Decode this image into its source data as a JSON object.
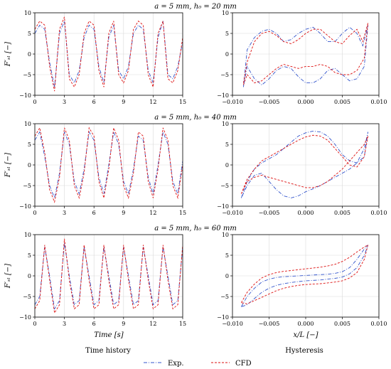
{
  "colors": {
    "exp": "#3355cc",
    "cfd": "#dd1111"
  },
  "chart_data": [
    {
      "type": "line",
      "panel": "time-history",
      "row": 0,
      "title": "a = 5 mm,  h₀ = 20 mm",
      "xlabel": "",
      "ylabel": "F′ₛₗ [−]",
      "xlim": [
        0,
        15
      ],
      "ylim": [
        -10,
        10
      ],
      "xticks": [
        "0",
        "3",
        "6",
        "9",
        "12",
        "15"
      ],
      "yticks": [
        "10",
        "5",
        "0",
        "−5",
        "−10"
      ],
      "grid": true,
      "series": [
        {
          "name": "Exp.",
          "style": "dash-dot",
          "x": [
            0.0,
            0.5,
            1.0,
            1.5,
            2.0,
            2.5,
            3.0,
            3.5,
            4.0,
            4.5,
            5.0,
            5.5,
            6.0,
            6.5,
            7.0,
            7.5,
            8.0,
            8.5,
            9.0,
            9.5,
            10.0,
            10.5,
            11.0,
            11.5,
            12.0,
            12.5,
            13.0,
            13.5,
            14.0,
            14.5,
            15.0
          ],
          "values": [
            5,
            7,
            6,
            -2,
            -8,
            5,
            8,
            -5,
            -7,
            -4,
            4,
            7,
            6,
            -3,
            -7,
            4,
            7,
            -4,
            -6,
            -3,
            5,
            7,
            6,
            -4,
            -7,
            4,
            8,
            -5,
            -6,
            -3,
            3
          ]
        },
        {
          "name": "CFD",
          "style": "dashed",
          "x": [
            0.0,
            0.5,
            1.0,
            1.5,
            2.0,
            2.5,
            3.0,
            3.5,
            4.0,
            4.5,
            5.0,
            5.5,
            6.0,
            6.5,
            7.0,
            7.5,
            8.0,
            8.5,
            9.0,
            9.5,
            10.0,
            10.5,
            11.0,
            11.5,
            12.0,
            12.5,
            13.0,
            13.5,
            14.0,
            14.5,
            15.0
          ],
          "values": [
            6,
            8,
            7,
            -3,
            -9,
            6,
            9,
            -6,
            -8,
            -5,
            5,
            8,
            7,
            -4,
            -8,
            5,
            8,
            -5,
            -7,
            -4,
            6,
            8,
            7,
            -5,
            -8,
            5,
            8,
            -6,
            -7,
            -4,
            4
          ]
        }
      ]
    },
    {
      "type": "line",
      "panel": "hysteresis",
      "row": 0,
      "xlabel": "",
      "ylabel": "",
      "xlim": [
        -0.01,
        0.01
      ],
      "ylim": [
        -10,
        10
      ],
      "xticks": [
        "−0.010",
        "−0.005",
        "0.000",
        "0.005",
        "0.010"
      ],
      "yticks": [
        "10",
        "5",
        "0",
        "−5",
        "−10"
      ],
      "grid": true,
      "series": [
        {
          "name": "Exp.",
          "style": "dash-dot",
          "x": [
            -0.0085,
            -0.008,
            -0.007,
            -0.006,
            -0.005,
            -0.004,
            -0.003,
            -0.002,
            -0.001,
            0.0,
            0.001,
            0.002,
            0.003,
            0.004,
            0.005,
            0.006,
            0.007,
            0.0078,
            0.0085,
            0.008,
            0.007,
            0.006,
            0.005,
            0.004,
            0.003,
            0.002,
            0.001,
            0.0,
            -0.001,
            -0.002,
            -0.003,
            -0.004,
            -0.005,
            -0.006,
            -0.007,
            -0.008,
            -0.0085
          ],
          "values": [
            -8,
            1,
            4,
            5.5,
            6,
            5,
            3,
            3.5,
            5,
            6,
            6.5,
            5,
            3,
            3,
            5,
            6.5,
            5,
            2,
            7,
            -3,
            -6,
            -6.5,
            -5,
            -3.5,
            -4,
            -6,
            -7,
            -7,
            -5.5,
            -3.5,
            -3,
            -4,
            -6,
            -7.5,
            -6,
            -3,
            -8
          ]
        },
        {
          "name": "CFD",
          "style": "dashed",
          "x": [
            -0.0085,
            -0.008,
            -0.007,
            -0.006,
            -0.005,
            -0.004,
            -0.003,
            -0.002,
            -0.001,
            0.0,
            0.001,
            0.002,
            0.003,
            0.004,
            0.005,
            0.006,
            0.007,
            0.0078,
            0.0085,
            0.008,
            0.007,
            0.006,
            0.005,
            0.004,
            0.003,
            0.002,
            0.001,
            0.0,
            -0.001,
            -0.002,
            -0.003,
            -0.004,
            -0.005,
            -0.006,
            -0.007,
            -0.008,
            -0.0085
          ],
          "values": [
            -7,
            -2,
            3,
            5,
            5.5,
            4.5,
            3,
            2.5,
            3.5,
            5,
            6,
            6,
            4.5,
            3,
            2.5,
            4.5,
            6,
            3,
            7.5,
            -1,
            -4,
            -5,
            -5,
            -4.5,
            -3,
            -2.5,
            -3,
            -3,
            -3.5,
            -3,
            -2.5,
            -3.5,
            -5,
            -6.5,
            -7,
            -5,
            -7.5
          ]
        }
      ]
    },
    {
      "type": "line",
      "panel": "time-history",
      "row": 1,
      "title": "a =  5 mm,  h₀ = 40 mm",
      "xlabel": "",
      "ylabel": "F′ₛₗ [−]",
      "xlim": [
        0,
        15
      ],
      "ylim": [
        -10,
        10
      ],
      "xticks": [
        "0",
        "3",
        "6",
        "9",
        "12",
        "15"
      ],
      "yticks": [
        "10",
        "5",
        "0",
        "−5",
        "−10"
      ],
      "grid": true,
      "series": [
        {
          "name": "Exp.",
          "style": "dash-dot",
          "x": [
            0.0,
            0.5,
            1.0,
            1.5,
            2.0,
            2.5,
            3.0,
            3.5,
            4.0,
            4.5,
            5.0,
            5.5,
            6.0,
            6.5,
            7.0,
            7.5,
            8.0,
            8.5,
            9.0,
            9.5,
            10.0,
            10.5,
            11.0,
            11.5,
            12.0,
            12.5,
            13.0,
            13.5,
            14.0,
            14.5,
            15.0
          ],
          "values": [
            6,
            8,
            2,
            -5,
            -8,
            -2,
            8,
            5,
            -4,
            -7,
            -1,
            8,
            6,
            -3,
            -7,
            0,
            8,
            5,
            -4,
            -7,
            -1,
            7,
            6,
            -3,
            -7,
            0,
            8,
            5,
            -4,
            -7,
            1
          ]
        },
        {
          "name": "CFD",
          "style": "dashed",
          "x": [
            0.0,
            0.5,
            1.0,
            1.5,
            2.0,
            2.5,
            3.0,
            3.5,
            4.0,
            4.5,
            5.0,
            5.5,
            6.0,
            6.5,
            7.0,
            7.5,
            8.0,
            8.5,
            9.0,
            9.5,
            10.0,
            10.5,
            11.0,
            11.5,
            12.0,
            12.5,
            13.0,
            13.5,
            14.0,
            14.5,
            15.0
          ],
          "values": [
            7,
            9,
            3,
            -6,
            -9,
            -3,
            9,
            6,
            -5,
            -8,
            -2,
            9,
            7,
            -4,
            -8,
            -1,
            9,
            6,
            -5,
            -8,
            -2,
            8,
            7,
            -4,
            -8,
            -1,
            9,
            6,
            -5,
            -8,
            0
          ]
        }
      ]
    },
    {
      "type": "line",
      "panel": "hysteresis",
      "row": 1,
      "xlabel": "",
      "ylabel": "",
      "xlim": [
        -0.01,
        0.01
      ],
      "ylim": [
        -10,
        10
      ],
      "xticks": [
        "−0.010",
        "−0.005",
        "0.000",
        "0.005",
        "0.010"
      ],
      "yticks": [
        "10",
        "5",
        "0",
        "−5",
        "−10"
      ],
      "grid": true,
      "series": [
        {
          "name": "Exp.",
          "style": "dash-dot",
          "x": [
            -0.0088,
            -0.008,
            -0.007,
            -0.006,
            -0.005,
            -0.004,
            -0.003,
            -0.002,
            -0.001,
            0.0,
            0.001,
            0.002,
            0.003,
            0.004,
            0.005,
            0.006,
            0.007,
            0.008,
            0.0085,
            0.008,
            0.007,
            0.006,
            0.005,
            0.004,
            0.003,
            0.002,
            0.001,
            0.0,
            -0.001,
            -0.002,
            -0.003,
            -0.004,
            -0.005,
            -0.006,
            -0.007,
            -0.008,
            -0.0088
          ],
          "values": [
            -8,
            -4,
            -1,
            0.5,
            1.5,
            2.5,
            4,
            5.5,
            7,
            7.8,
            8.2,
            8,
            7,
            5,
            2.5,
            1,
            0.5,
            2,
            8,
            4,
            0.5,
            -1,
            -2,
            -3,
            -4,
            -5,
            -5.8,
            -6.5,
            -7.5,
            -8,
            -7.5,
            -6,
            -4,
            -2,
            -2.5,
            -5,
            -8
          ]
        },
        {
          "name": "CFD",
          "style": "dashed",
          "x": [
            -0.0088,
            -0.008,
            -0.007,
            -0.006,
            -0.005,
            -0.004,
            -0.003,
            -0.002,
            -0.001,
            0.0,
            0.001,
            0.002,
            0.003,
            0.004,
            0.005,
            0.006,
            0.007,
            0.008,
            0.0085,
            0.008,
            0.007,
            0.006,
            0.005,
            0.004,
            0.003,
            0.002,
            0.001,
            0.0,
            -0.001,
            -0.002,
            -0.003,
            -0.004,
            -0.005,
            -0.006,
            -0.007,
            -0.008,
            -0.0088
          ],
          "values": [
            -7,
            -4,
            -3,
            -2.5,
            -3,
            -3.5,
            -4,
            -4.5,
            -5,
            -5.5,
            -5.5,
            -5,
            -4,
            -2.5,
            -1,
            1,
            3,
            5,
            7,
            2,
            -0.5,
            0,
            2,
            4,
            6,
            7,
            7.2,
            6.8,
            6,
            5,
            4,
            3,
            2,
            1,
            -1,
            -3.5,
            -7
          ]
        }
      ]
    },
    {
      "type": "line",
      "panel": "time-history",
      "row": 2,
      "title": "a = 5 mm,  h₀ = 60 mm",
      "xlabel": "Time [s]",
      "ylabel": "F′ₛₗ [−]",
      "xlim": [
        0,
        15
      ],
      "ylim": [
        -10,
        10
      ],
      "xticks": [
        "0",
        "3",
        "6",
        "9",
        "12",
        "15"
      ],
      "yticks": [
        "10",
        "5",
        "0",
        "−5",
        "−10"
      ],
      "grid": true,
      "series": [
        {
          "name": "Exp.",
          "style": "dash-dot",
          "x": [
            0.0,
            0.5,
            1.0,
            1.5,
            2.0,
            2.5,
            3.0,
            3.5,
            4.0,
            4.5,
            5.0,
            5.5,
            6.0,
            6.5,
            7.0,
            7.5,
            8.0,
            8.5,
            9.0,
            9.5,
            10.0,
            10.5,
            11.0,
            11.5,
            12.0,
            12.5,
            13.0,
            13.5,
            14.0,
            14.5,
            15.0
          ],
          "values": [
            -7,
            -5,
            7,
            0,
            -8,
            -6,
            8,
            0,
            -7,
            -6,
            7,
            0,
            -7,
            -6,
            7,
            0,
            -7,
            -6,
            7,
            0,
            -7,
            -6,
            7,
            0,
            -7,
            -6,
            7,
            0,
            -7,
            -6,
            7
          ]
        },
        {
          "name": "CFD",
          "style": "dashed",
          "x": [
            0.0,
            0.5,
            1.0,
            1.5,
            2.0,
            2.5,
            3.0,
            3.5,
            4.0,
            4.5,
            5.0,
            5.5,
            6.0,
            6.5,
            7.0,
            7.5,
            8.0,
            8.5,
            9.0,
            9.5,
            10.0,
            10.5,
            11.0,
            11.5,
            12.0,
            12.5,
            13.0,
            13.5,
            14.0,
            14.5,
            15.0
          ],
          "values": [
            -8,
            -6,
            7.5,
            -1,
            -9,
            -7,
            9,
            -1,
            -8,
            -7,
            7.5,
            -1,
            -8,
            -7,
            7.5,
            -1,
            -8,
            -7,
            7.5,
            -1,
            -8,
            -7,
            7.5,
            -1,
            -8,
            -7,
            7.5,
            -1,
            -8,
            -7,
            7.5
          ]
        }
      ]
    },
    {
      "type": "line",
      "panel": "hysteresis",
      "row": 2,
      "xlabel": "x/L [−]",
      "ylabel": "",
      "xlim": [
        -0.01,
        0.01
      ],
      "ylim": [
        -10,
        10
      ],
      "xticks": [
        "−0.010",
        "−0.005",
        "0.000",
        "0.005",
        "0.010"
      ],
      "yticks": [
        "10",
        "5",
        "0",
        "−5",
        "−10"
      ],
      "grid": true,
      "series": [
        {
          "name": "Exp.",
          "style": "dash-dot",
          "x": [
            -0.0088,
            -0.008,
            -0.007,
            -0.006,
            -0.005,
            -0.004,
            -0.003,
            -0.002,
            -0.001,
            0.0,
            0.001,
            0.002,
            0.003,
            0.004,
            0.005,
            0.006,
            0.007,
            0.008,
            0.0085,
            0.008,
            0.007,
            0.006,
            0.005,
            0.004,
            0.003,
            0.002,
            0.001,
            0.0,
            -0.001,
            -0.002,
            -0.003,
            -0.004,
            -0.005,
            -0.006,
            -0.007,
            -0.008,
            -0.0088
          ],
          "values": [
            -7.5,
            -5,
            -3,
            -1.5,
            -0.8,
            -0.4,
            -0.2,
            -0.1,
            0,
            0.1,
            0.2,
            0.3,
            0.4,
            0.6,
            1,
            2,
            4,
            6.5,
            7.5,
            5,
            2,
            0.5,
            -0.3,
            -0.6,
            -0.8,
            -1,
            -1.1,
            -1.2,
            -1.4,
            -1.6,
            -1.9,
            -2.3,
            -3,
            -4,
            -5.5,
            -7,
            -7.5
          ]
        },
        {
          "name": "CFD",
          "style": "dashed",
          "x": [
            -0.0088,
            -0.008,
            -0.007,
            -0.006,
            -0.005,
            -0.004,
            -0.003,
            -0.002,
            -0.001,
            0.0,
            0.001,
            0.002,
            0.003,
            0.004,
            0.005,
            0.006,
            0.007,
            0.008,
            0.0085,
            0.008,
            0.007,
            0.006,
            0.005,
            0.004,
            0.003,
            0.002,
            0.001,
            0.0,
            -0.001,
            -0.002,
            -0.003,
            -0.004,
            -0.005,
            -0.006,
            -0.007,
            -0.008,
            -0.0088
          ],
          "values": [
            -6.5,
            -4,
            -2,
            -0.5,
            0.3,
            0.8,
            1.1,
            1.3,
            1.5,
            1.7,
            1.9,
            2.1,
            2.4,
            2.8,
            3.5,
            4.5,
            5.8,
            7,
            7.5,
            4,
            0.8,
            -0.5,
            -1.2,
            -1.5,
            -1.7,
            -1.9,
            -2,
            -2.1,
            -2.3,
            -2.6,
            -3,
            -3.6,
            -4.4,
            -5.2,
            -6,
            -6.8,
            -6.5
          ]
        }
      ]
    }
  ],
  "col_titles": {
    "left": "Time history",
    "right": "Hysteresis"
  },
  "legend": {
    "exp_label": "Exp.",
    "cfd_label": "CFD"
  }
}
